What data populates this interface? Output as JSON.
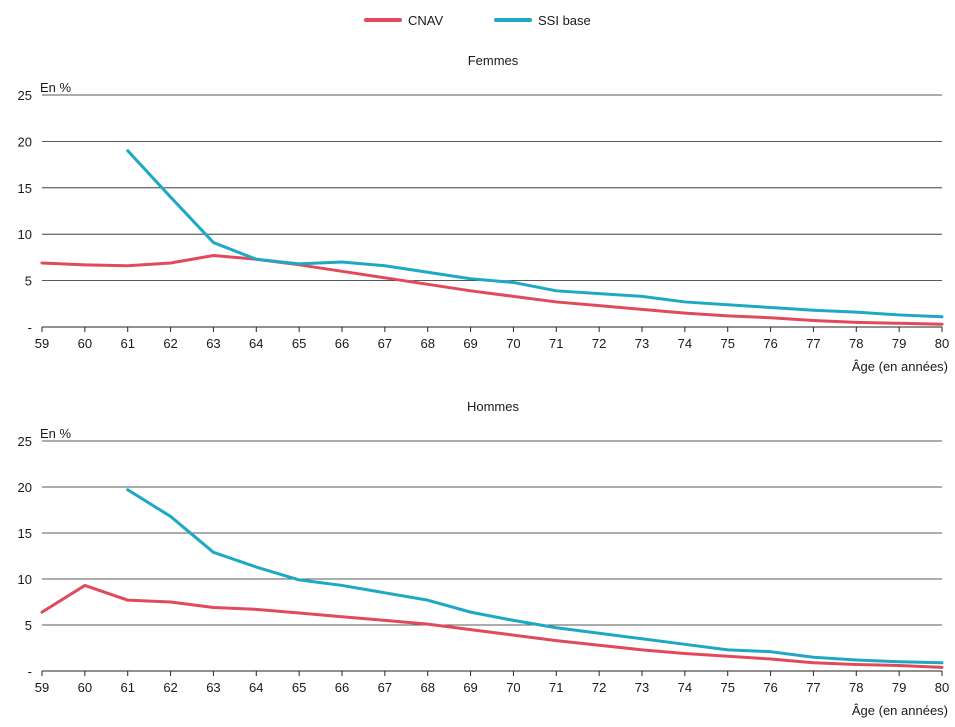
{
  "legend": [
    {
      "name": "CNAV",
      "color": "#e04a5c"
    },
    {
      "name": "SSI base",
      "color": "#1ea8c4"
    }
  ],
  "chart_data": [
    {
      "type": "line",
      "title": "Femmes",
      "ylabel": "En %",
      "xlabel": "Âge (en années)",
      "ylim": [
        0,
        25
      ],
      "yticks": [
        "-",
        "5",
        "10",
        "15",
        "20",
        "25"
      ],
      "x": [
        59,
        60,
        61,
        62,
        63,
        64,
        65,
        66,
        67,
        68,
        69,
        70,
        71,
        72,
        73,
        74,
        75,
        76,
        77,
        78,
        79,
        80
      ],
      "series": [
        {
          "name": "CNAV",
          "color": "#e04a5c",
          "values": [
            6.9,
            6.7,
            6.6,
            6.9,
            7.7,
            7.3,
            6.7,
            6.0,
            5.3,
            4.6,
            3.9,
            3.3,
            2.7,
            2.3,
            1.9,
            1.5,
            1.2,
            1.0,
            0.7,
            0.5,
            0.4,
            0.3
          ]
        },
        {
          "name": "SSI base",
          "color": "#1ea8c4",
          "values": [
            null,
            null,
            19.0,
            14.0,
            9.1,
            7.3,
            6.8,
            7.0,
            6.6,
            5.9,
            5.2,
            4.8,
            3.9,
            3.6,
            3.3,
            2.7,
            2.4,
            2.1,
            1.8,
            1.6,
            1.3,
            1.1
          ]
        }
      ]
    },
    {
      "type": "line",
      "title": "Hommes",
      "ylabel": "En %",
      "xlabel": "Âge (en années)",
      "ylim": [
        0,
        25
      ],
      "yticks": [
        "-",
        "5",
        "10",
        "15",
        "20",
        "25"
      ],
      "x": [
        59,
        60,
        61,
        62,
        63,
        64,
        65,
        66,
        67,
        68,
        69,
        70,
        71,
        72,
        73,
        74,
        75,
        76,
        77,
        78,
        79,
        80
      ],
      "series": [
        {
          "name": "CNAV",
          "color": "#e04a5c",
          "values": [
            6.4,
            9.3,
            7.7,
            7.5,
            6.9,
            6.7,
            6.3,
            5.9,
            5.5,
            5.1,
            4.5,
            3.9,
            3.3,
            2.8,
            2.3,
            1.9,
            1.6,
            1.3,
            0.9,
            0.7,
            0.6,
            0.4
          ]
        },
        {
          "name": "SSI base",
          "color": "#1ea8c4",
          "values": [
            null,
            null,
            19.7,
            16.8,
            12.9,
            11.3,
            9.9,
            9.3,
            8.5,
            7.7,
            6.4,
            5.5,
            4.7,
            4.1,
            3.5,
            2.9,
            2.3,
            2.1,
            1.5,
            1.2,
            1.0,
            0.9
          ]
        }
      ]
    }
  ]
}
